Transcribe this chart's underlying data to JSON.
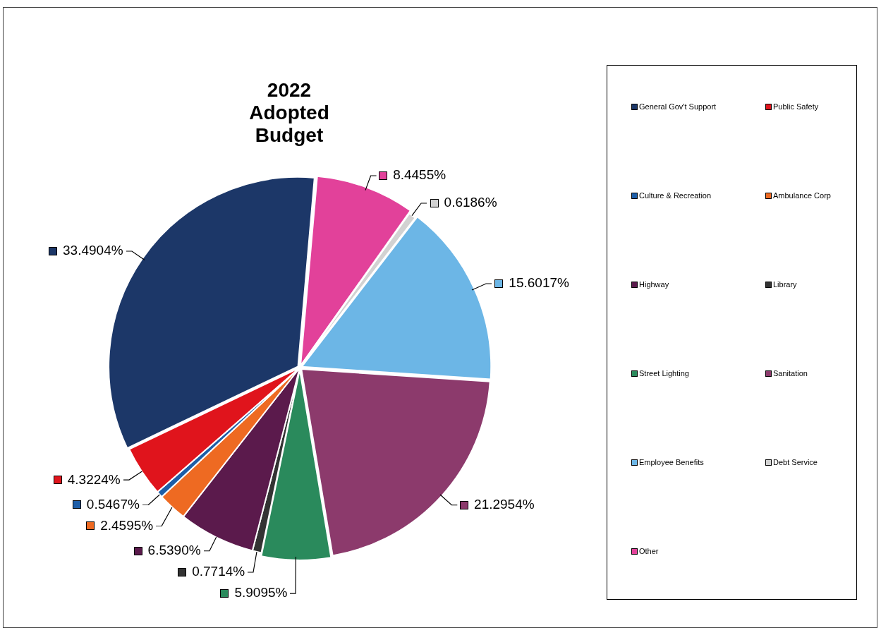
{
  "chart_data": {
    "type": "pie",
    "title": "2022 Adopted Budget",
    "categories": [
      "General Gov't Support",
      "Public Safety",
      "Culture & Recreation",
      "Ambulance Corp",
      "Highway",
      "Library",
      "Street Lighting",
      "Sanitation",
      "Employee Benefits",
      "Debt Service",
      "Other"
    ],
    "values": [
      33.4904,
      4.3224,
      0.5467,
      2.4595,
      6.539,
      0.7714,
      5.9095,
      21.2954,
      15.6017,
      0.6186,
      8.4455
    ],
    "value_labels": [
      "33.4904%",
      "4.3224%",
      "0.5467%",
      "2.4595%",
      "6.5390%",
      "0.7714%",
      "5.9095%",
      "21.2954%",
      "15.6017%",
      "0.6186%",
      "8.4455%"
    ],
    "colors": [
      "#1c3768",
      "#e0141c",
      "#1d5ea8",
      "#ee6a22",
      "#5b1a4c",
      "#333333",
      "#2a8a5c",
      "#8c3a6c",
      "#6cb6e6",
      "#d2d2d2",
      "#e2419a"
    ],
    "legend": "right"
  }
}
